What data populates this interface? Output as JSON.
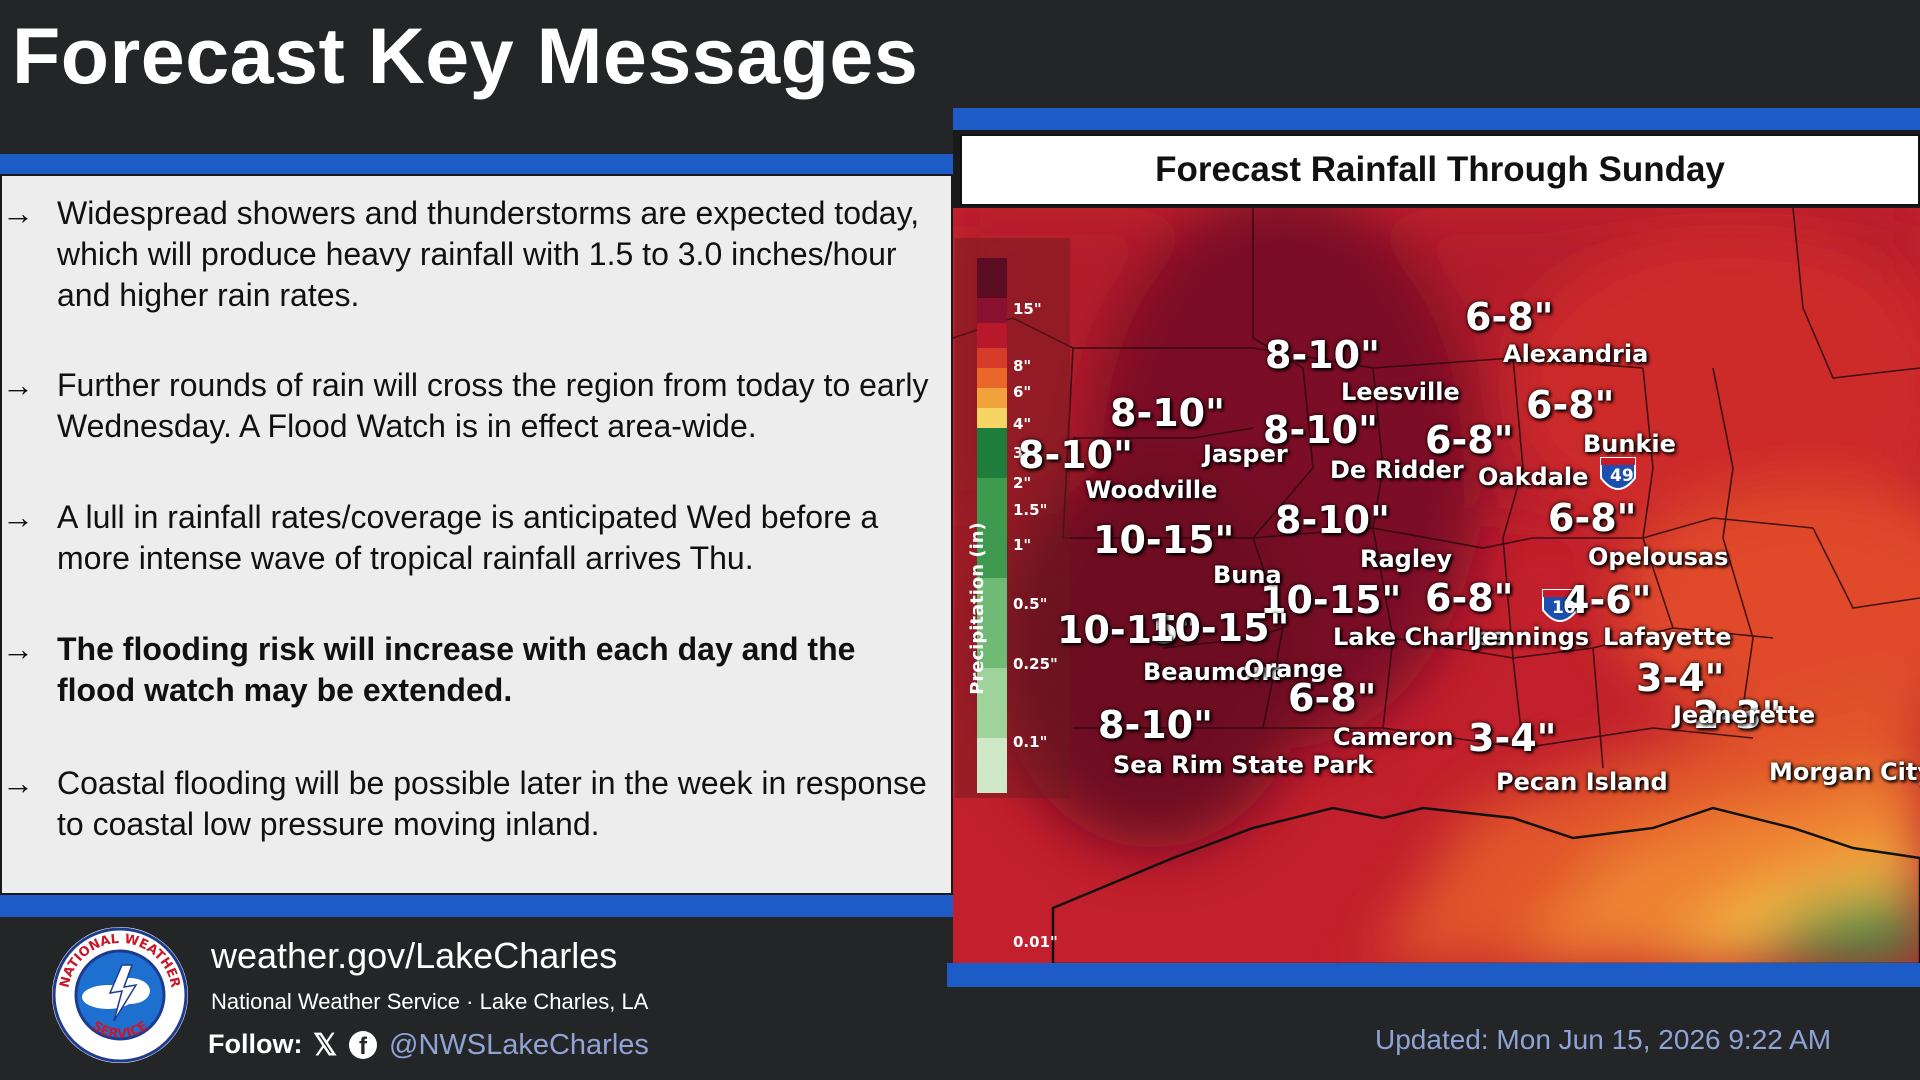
{
  "header": {
    "title": "Forecast Key Messages"
  },
  "messages": [
    {
      "text": "Widespread showers and thunderstorms are expected today, which will produce heavy rainfall with 1.5 to 3.0 inches/hour and higher rain rates.",
      "bold": false
    },
    {
      "text": "Further rounds of rain will cross the region from today to early Wednesday. A Flood Watch is in effect area-wide.",
      "bold": false
    },
    {
      "text": "A lull in rainfall rates/coverage is anticipated Wed before a more intense wave of tropical rainfall arrives Thu.",
      "bold": false
    },
    {
      "text": "The flooding risk will increase with each day and the flood watch may be extended.",
      "bold": true
    },
    {
      "text": "Coastal flooding will be possible later in the week in response to coastal low pressure moving inland.",
      "bold": false
    }
  ],
  "bullet_arrow": "→",
  "map": {
    "title": "Forecast Rainfall Through Sunday",
    "legend": {
      "title": "Precipitation (in)",
      "ticks": [
        "15\"",
        "8\"",
        "6\"",
        "4\"",
        "3\"",
        "2\"",
        "1.5\"",
        "1\"",
        "0.5\"",
        "0.25\"",
        "0.1\"",
        "0.01\""
      ],
      "colors": [
        "#5a0d22",
        "#8a1030",
        "#b8182c",
        "#d63a28",
        "#e9672a",
        "#f2a23a",
        "#f6d564",
        "#1e7d3a",
        "#3d9a4f",
        "#6fbb76",
        "#9fd39c",
        "#cfe8c8"
      ]
    },
    "amounts": [
      "6-8\"",
      "8-10\"",
      "8-10\"",
      "8-10\"",
      "6-8\"",
      "6-8\"",
      "8-10\"",
      "10-15\"",
      "8-10\"",
      "6-8\"",
      "10-15\"",
      "6-8\"",
      "4-6\"",
      "10-15\"",
      "10-15\"",
      "3-4\"",
      "6-8\"",
      "8-10\"",
      "3-4\"",
      "2-3\""
    ],
    "cities": [
      "Alexandria",
      "Leesville",
      "Jasper",
      "De Ridder",
      "Oakdale",
      "Bunkie",
      "Woodville",
      "Opelousas",
      "Ragley",
      "Buna",
      "Lake Charles",
      "Jennings",
      "Lafayette",
      "Beaumont",
      "Orange",
      "Jeanerette",
      "Cameron",
      "Pecan Island",
      "Morgan City",
      "Sea Rim State Park"
    ],
    "interstate_49": "49",
    "interstate_10": "10"
  },
  "footer": {
    "site": "weather.gov/LakeCharles",
    "office": "National Weather Service · Lake Charles, LA",
    "follow_label": "Follow:",
    "x_icon": "𝕏",
    "fb_icon": "f",
    "handle": "@NWSLakeCharles",
    "updated": "Updated: Mon Jun 15, 2026 9:22 AM",
    "logo_text_top": "NATIONAL WEATHER",
    "logo_text_bottom": "SERVICE"
  }
}
